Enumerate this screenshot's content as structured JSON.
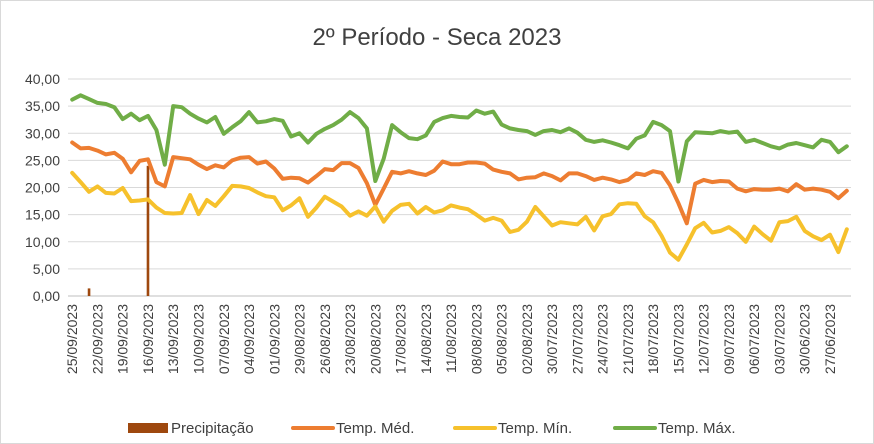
{
  "chart_data": {
    "type": "line",
    "title": "2º Período - Seca 2023",
    "xlabel": "",
    "ylabel": "",
    "ylim": [
      0,
      40
    ],
    "yticks": [
      "0,00",
      "5,00",
      "10,00",
      "15,00",
      "20,00",
      "25,00",
      "30,00",
      "35,00",
      "40,00"
    ],
    "grid": true,
    "legend_position": "bottom",
    "x_order": "descending-dates-left-to-right",
    "xtick_labels": [
      "25/09/2023",
      "22/09/2023",
      "19/09/2023",
      "16/09/2023",
      "13/09/2023",
      "10/09/2023",
      "07/09/2023",
      "04/09/2023",
      "01/09/2023",
      "29/08/2023",
      "26/08/2023",
      "23/08/2023",
      "20/08/2023",
      "17/08/2023",
      "14/08/2023",
      "11/08/2023",
      "08/08/2023",
      "05/08/2023",
      "02/08/2023",
      "30/07/2023",
      "27/07/2023",
      "24/07/2023",
      "21/07/2023",
      "18/07/2023",
      "15/07/2023",
      "12/07/2023",
      "09/07/2023",
      "06/07/2023",
      "03/07/2023",
      "30/06/2023",
      "27/06/2023"
    ],
    "x": [
      "25/09/2023",
      "24/09/2023",
      "23/09/2023",
      "22/09/2023",
      "21/09/2023",
      "20/09/2023",
      "19/09/2023",
      "18/09/2023",
      "17/09/2023",
      "16/09/2023",
      "15/09/2023",
      "14/09/2023",
      "13/09/2023",
      "12/09/2023",
      "11/09/2023",
      "10/09/2023",
      "09/09/2023",
      "08/09/2023",
      "07/09/2023",
      "06/09/2023",
      "05/09/2023",
      "04/09/2023",
      "03/09/2023",
      "02/09/2023",
      "01/09/2023",
      "31/08/2023",
      "30/08/2023",
      "29/08/2023",
      "28/08/2023",
      "27/08/2023",
      "26/08/2023",
      "25/08/2023",
      "24/08/2023",
      "23/08/2023",
      "22/08/2023",
      "21/08/2023",
      "20/08/2023",
      "19/08/2023",
      "18/08/2023",
      "17/08/2023",
      "16/08/2023",
      "15/08/2023",
      "14/08/2023",
      "13/08/2023",
      "12/08/2023",
      "11/08/2023",
      "10/08/2023",
      "09/08/2023",
      "08/08/2023",
      "07/08/2023",
      "06/08/2023",
      "05/08/2023",
      "04/08/2023",
      "03/08/2023",
      "02/08/2023",
      "01/08/2023",
      "31/07/2023",
      "30/07/2023",
      "29/07/2023",
      "28/07/2023",
      "27/07/2023",
      "26/07/2023",
      "25/07/2023",
      "24/07/2023",
      "23/07/2023",
      "22/07/2023",
      "21/07/2023",
      "20/07/2023",
      "19/07/2023",
      "18/07/2023",
      "17/07/2023",
      "16/07/2023",
      "15/07/2023",
      "14/07/2023",
      "13/07/2023",
      "12/07/2023",
      "11/07/2023",
      "10/07/2023",
      "09/07/2023",
      "08/07/2023",
      "07/07/2023",
      "06/07/2023",
      "05/07/2023",
      "04/07/2023",
      "03/07/2023",
      "02/07/2023",
      "01/07/2023",
      "30/06/2023",
      "29/06/2023",
      "28/06/2023",
      "27/06/2023",
      "26/06/2023",
      "25/06/2023"
    ],
    "series": [
      {
        "name": "Precipitação",
        "kind": "bar",
        "color": "#9e480e",
        "values": [
          0,
          0,
          1.4,
          0,
          0,
          0,
          0,
          0,
          0,
          24,
          0,
          0,
          0,
          0,
          0,
          0,
          0,
          0,
          0,
          0,
          0,
          0,
          0,
          0,
          0,
          0,
          0,
          0,
          0,
          0,
          0,
          0,
          0,
          0,
          0,
          0,
          0,
          0,
          0,
          0,
          0,
          0,
          0,
          0,
          0,
          0,
          0,
          0,
          0,
          0,
          0,
          0,
          0,
          0,
          0,
          0,
          0,
          0,
          0,
          0,
          0,
          0,
          0,
          0,
          0,
          0,
          0,
          0,
          0,
          0,
          0,
          0,
          0,
          0,
          0,
          0,
          0,
          0,
          0,
          0,
          0,
          0,
          0,
          0,
          0,
          0,
          0,
          0,
          0,
          0,
          0,
          0,
          0
        ]
      },
      {
        "name": "Temp. Méd.",
        "kind": "line",
        "color": "#ed7d31",
        "values": [
          28.3,
          27.2,
          27.3,
          26.8,
          26.1,
          26.4,
          25.3,
          22.8,
          24.9,
          25.2,
          21.0,
          20.2,
          25.6,
          25.4,
          25.2,
          24.2,
          23.4,
          24.1,
          23.7,
          25.0,
          25.5,
          25.6,
          24.4,
          24.8,
          23.5,
          21.6,
          21.8,
          21.7,
          20.9,
          22.1,
          23.4,
          23.2,
          24.5,
          24.5,
          23.6,
          20.8,
          16.8,
          19.8,
          22.9,
          22.6,
          23.0,
          22.6,
          22.3,
          23.1,
          24.8,
          24.3,
          24.3,
          24.6,
          24.6,
          24.4,
          23.3,
          22.9,
          22.6,
          21.5,
          21.8,
          21.9,
          22.6,
          22.1,
          21.3,
          22.6,
          22.6,
          22.1,
          21.4,
          21.8,
          21.5,
          21.0,
          21.4,
          22.6,
          22.3,
          23.0,
          22.7,
          20.4,
          17.1,
          13.4,
          20.7,
          21.4,
          21.0,
          21.2,
          21.1,
          19.8,
          19.3,
          19.7,
          19.6,
          19.6,
          19.8,
          19.3,
          20.6,
          19.6,
          19.8,
          19.6,
          19.2,
          18.0,
          19.4
        ]
      },
      {
        "name": "Temp. Mín.",
        "kind": "line",
        "color": "#f6c12c",
        "values": [
          22.7,
          21.0,
          19.2,
          20.2,
          19.0,
          18.9,
          19.9,
          17.5,
          17.6,
          17.8,
          16.3,
          15.3,
          15.2,
          15.3,
          18.6,
          15.1,
          17.7,
          16.6,
          18.4,
          20.3,
          20.2,
          19.9,
          19.1,
          18.4,
          18.2,
          15.8,
          16.7,
          18.0,
          14.6,
          16.3,
          18.3,
          17.4,
          16.5,
          14.8,
          15.6,
          14.8,
          16.5,
          13.7,
          15.7,
          16.8,
          17.0,
          15.2,
          16.4,
          15.4,
          15.8,
          16.7,
          16.3,
          16.0,
          15.0,
          13.9,
          14.4,
          13.9,
          11.8,
          12.2,
          13.7,
          16.4,
          14.7,
          13.0,
          13.6,
          13.4,
          13.2,
          14.6,
          12.1,
          14.7,
          15.1,
          16.9,
          17.1,
          17.0,
          14.7,
          13.6,
          11.1,
          8.0,
          6.7,
          9.5,
          12.5,
          13.5,
          11.7,
          12.0,
          12.7,
          11.6,
          10.0,
          12.8,
          11.4,
          10.2,
          13.6,
          13.8,
          14.6,
          12.0,
          11.0,
          10.3,
          11.3,
          8.1,
          12.3
        ]
      },
      {
        "name": "Temp. Máx.",
        "kind": "line",
        "color": "#70ad47",
        "values": [
          36.2,
          37.0,
          36.3,
          35.6,
          35.4,
          34.8,
          32.6,
          33.6,
          32.4,
          33.2,
          30.6,
          24.2,
          35.0,
          34.8,
          33.6,
          32.7,
          32.0,
          33.0,
          29.9,
          31.1,
          32.2,
          33.9,
          32.0,
          32.2,
          32.6,
          32.3,
          29.4,
          30.0,
          28.3,
          29.9,
          30.8,
          31.5,
          32.5,
          33.9,
          32.8,
          30.9,
          21.2,
          25.3,
          31.5,
          30.2,
          29.1,
          28.9,
          29.6,
          32.1,
          32.8,
          33.2,
          33.0,
          32.9,
          34.2,
          33.6,
          34.0,
          31.6,
          30.9,
          30.6,
          30.4,
          29.7,
          30.4,
          30.6,
          30.2,
          30.9,
          30.1,
          28.8,
          28.4,
          28.7,
          28.3,
          27.8,
          27.2,
          29.0,
          29.6,
          32.1,
          31.5,
          30.4,
          21.1,
          28.5,
          30.2,
          30.1,
          30.0,
          30.4,
          30.1,
          30.3,
          28.4,
          28.8,
          28.2,
          27.6,
          27.2,
          27.9,
          28.2,
          27.8,
          27.4,
          28.8,
          28.4,
          26.5,
          27.6
        ]
      }
    ]
  },
  "colors": {
    "gridline": "#d9d9d9",
    "axis": "#bfbfbf",
    "text": "#404040",
    "precipitation": "#9e480e",
    "temp_med": "#ed7d31",
    "temp_min": "#f6c12c",
    "temp_max": "#70ad47"
  },
  "legend": {
    "items": [
      {
        "label": "Precipitação",
        "marker": "bar",
        "color": "#9e480e"
      },
      {
        "label": "Temp. Méd.",
        "marker": "line",
        "color": "#ed7d31"
      },
      {
        "label": "Temp. Mín.",
        "marker": "line",
        "color": "#f6c12c"
      },
      {
        "label": "Temp. Máx.",
        "marker": "line",
        "color": "#70ad47"
      }
    ]
  }
}
